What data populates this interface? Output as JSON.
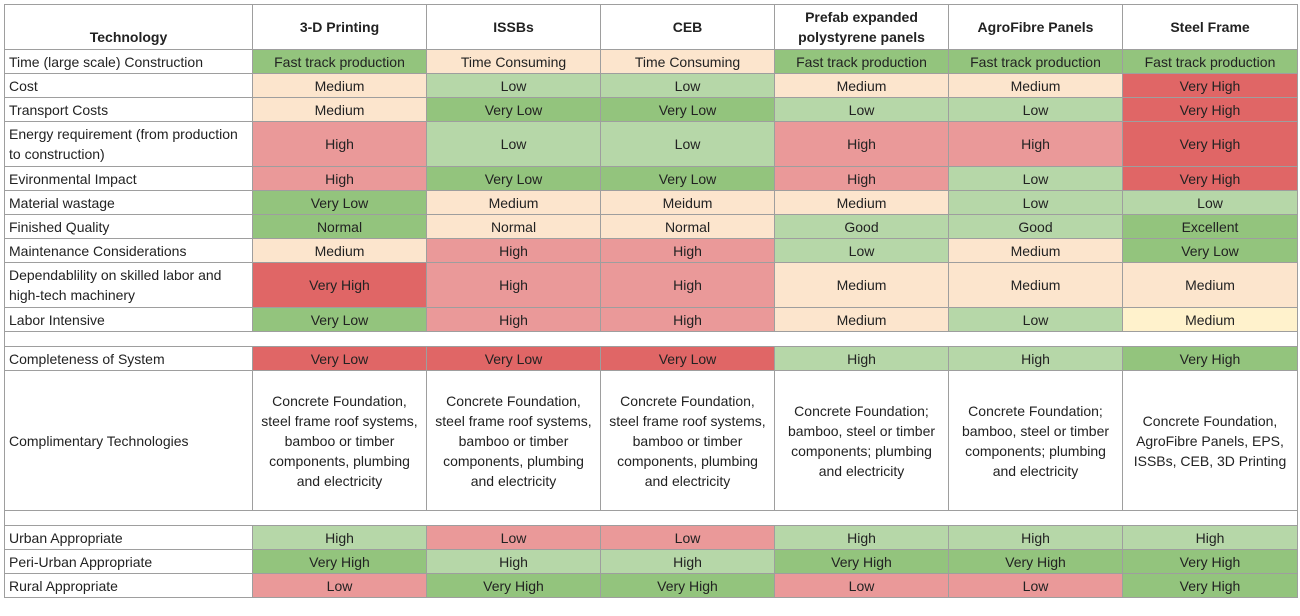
{
  "chart_data": {
    "type": "table",
    "row_header_label": "Technology",
    "columns": [
      "3-D Printing",
      "ISSBs",
      "CEB",
      "Prefab expanded polystyrene panels",
      "AgroFibre Panels",
      "Steel Frame"
    ],
    "rows": [
      {
        "label": "Time (large scale) Construction",
        "cells": [
          {
            "text": "Fast track production",
            "color": "#93c47d"
          },
          {
            "text": "Time Consuming",
            "color": "#fce5cd"
          },
          {
            "text": "Time Consuming",
            "color": "#fce5cd"
          },
          {
            "text": "Fast track production",
            "color": "#93c47d"
          },
          {
            "text": "Fast track production",
            "color": "#93c47d"
          },
          {
            "text": "Fast track production",
            "color": "#93c47d"
          }
        ]
      },
      {
        "label": "Cost",
        "cells": [
          {
            "text": "Medium",
            "color": "#fce5cd"
          },
          {
            "text": "Low",
            "color": "#b6d7a8"
          },
          {
            "text": "Low",
            "color": "#b6d7a8"
          },
          {
            "text": "Medium",
            "color": "#fce5cd"
          },
          {
            "text": "Medium",
            "color": "#fce5cd"
          },
          {
            "text": "Very High",
            "color": "#e06666"
          }
        ]
      },
      {
        "label": "Transport Costs",
        "cells": [
          {
            "text": "Medium",
            "color": "#fce5cd"
          },
          {
            "text": "Very Low",
            "color": "#93c47d"
          },
          {
            "text": "Very Low",
            "color": "#93c47d"
          },
          {
            "text": "Low",
            "color": "#b6d7a8"
          },
          {
            "text": "Low",
            "color": "#b6d7a8"
          },
          {
            "text": "Very High",
            "color": "#e06666"
          }
        ]
      },
      {
        "label": "Energy requirement (from production to construction)",
        "tall": true,
        "cells": [
          {
            "text": "High",
            "color": "#ea9999"
          },
          {
            "text": "Low",
            "color": "#b6d7a8"
          },
          {
            "text": "Low",
            "color": "#b6d7a8"
          },
          {
            "text": "High",
            "color": "#ea9999"
          },
          {
            "text": "High",
            "color": "#ea9999"
          },
          {
            "text": "Very High",
            "color": "#e06666"
          }
        ]
      },
      {
        "label": "Evironmental Impact",
        "cells": [
          {
            "text": "High",
            "color": "#ea9999"
          },
          {
            "text": "Very Low",
            "color": "#93c47d"
          },
          {
            "text": "Very Low",
            "color": "#93c47d"
          },
          {
            "text": "High",
            "color": "#ea9999"
          },
          {
            "text": "Low",
            "color": "#b6d7a8"
          },
          {
            "text": "Very High",
            "color": "#e06666"
          }
        ]
      },
      {
        "label": "Material wastage",
        "cells": [
          {
            "text": "Very Low",
            "color": "#93c47d"
          },
          {
            "text": "Medium",
            "color": "#fce5cd"
          },
          {
            "text": "Meidum",
            "color": "#fce5cd"
          },
          {
            "text": "Medium",
            "color": "#fce5cd"
          },
          {
            "text": "Low",
            "color": "#b6d7a8"
          },
          {
            "text": "Low",
            "color": "#b6d7a8"
          }
        ]
      },
      {
        "label": "Finished Quality",
        "cells": [
          {
            "text": "Normal",
            "color": "#93c47d"
          },
          {
            "text": "Normal",
            "color": "#fce5cd"
          },
          {
            "text": "Normal",
            "color": "#fce5cd"
          },
          {
            "text": "Good",
            "color": "#b6d7a8"
          },
          {
            "text": "Good",
            "color": "#b6d7a8"
          },
          {
            "text": "Excellent",
            "color": "#93c47d"
          }
        ]
      },
      {
        "label": "Maintenance Considerations",
        "cells": [
          {
            "text": "Medium",
            "color": "#fce5cd"
          },
          {
            "text": "High",
            "color": "#ea9999"
          },
          {
            "text": "High",
            "color": "#ea9999"
          },
          {
            "text": "Low",
            "color": "#b6d7a8"
          },
          {
            "text": "Medium",
            "color": "#fce5cd"
          },
          {
            "text": "Very Low",
            "color": "#93c47d"
          }
        ]
      },
      {
        "label": "Dependablility on skilled labor and high-tech machinery",
        "tall": true,
        "cells": [
          {
            "text": "Very High",
            "color": "#e06666"
          },
          {
            "text": "High",
            "color": "#ea9999"
          },
          {
            "text": "High",
            "color": "#ea9999"
          },
          {
            "text": "Medium",
            "color": "#fce5cd"
          },
          {
            "text": "Medium",
            "color": "#fce5cd"
          },
          {
            "text": "Medium",
            "color": "#fce5cd"
          }
        ]
      },
      {
        "label": "Labor Intensive",
        "cells": [
          {
            "text": "Very Low",
            "color": "#93c47d"
          },
          {
            "text": "High",
            "color": "#ea9999"
          },
          {
            "text": "High",
            "color": "#ea9999"
          },
          {
            "text": "Medium",
            "color": "#fce5cd"
          },
          {
            "text": "Low",
            "color": "#b6d7a8"
          },
          {
            "text": "Medium",
            "color": "#fff2cc"
          }
        ]
      },
      {
        "spacer": true
      },
      {
        "label": "Completeness of System",
        "cells": [
          {
            "text": "Very Low",
            "color": "#e06666"
          },
          {
            "text": "Very Low",
            "color": "#e06666"
          },
          {
            "text": "Very Low",
            "color": "#e06666"
          },
          {
            "text": "High",
            "color": "#b6d7a8"
          },
          {
            "text": "High",
            "color": "#b6d7a8"
          },
          {
            "text": "Very High",
            "color": "#93c47d"
          }
        ]
      },
      {
        "label": "Complimentary Technologies",
        "block": true,
        "cells": [
          {
            "text": "Concrete Foundation, steel frame roof systems, bamboo or timber components, plumbing and electricity",
            "color": "#ffffff"
          },
          {
            "text": "Concrete Foundation, steel frame roof systems, bamboo or timber components, plumbing and electricity",
            "color": "#ffffff"
          },
          {
            "text": "Concrete Foundation, steel frame roof systems, bamboo or timber components, plumbing and electricity",
            "color": "#ffffff"
          },
          {
            "text": "Concrete Foundation; bamboo, steel or timber components; plumbing and electricity",
            "color": "#ffffff"
          },
          {
            "text": "Concrete Foundation; bamboo, steel or timber components; plumbing and electricity",
            "color": "#ffffff"
          },
          {
            "text": "Concrete Foundation, AgroFibre Panels, EPS, ISSBs, CEB, 3D Printing",
            "color": "#ffffff"
          }
        ]
      },
      {
        "spacer": true
      },
      {
        "label": "Urban Appropriate",
        "cells": [
          {
            "text": "High",
            "color": "#b6d7a8"
          },
          {
            "text": "Low",
            "color": "#ea9999"
          },
          {
            "text": "Low",
            "color": "#ea9999"
          },
          {
            "text": "High",
            "color": "#b6d7a8"
          },
          {
            "text": "High",
            "color": "#b6d7a8"
          },
          {
            "text": "High",
            "color": "#b6d7a8"
          }
        ]
      },
      {
        "label": "Peri-Urban Appropriate",
        "cells": [
          {
            "text": "Very High",
            "color": "#93c47d"
          },
          {
            "text": "High",
            "color": "#b6d7a8"
          },
          {
            "text": "High",
            "color": "#b6d7a8"
          },
          {
            "text": "Very High",
            "color": "#93c47d"
          },
          {
            "text": "Very High",
            "color": "#93c47d"
          },
          {
            "text": "Very High",
            "color": "#93c47d"
          }
        ]
      },
      {
        "label": "Rural Appropriate",
        "cells": [
          {
            "text": "Low",
            "color": "#ea9999"
          },
          {
            "text": "Very High",
            "color": "#93c47d"
          },
          {
            "text": "Very High",
            "color": "#93c47d"
          },
          {
            "text": "Low",
            "color": "#ea9999"
          },
          {
            "text": "Low",
            "color": "#ea9999"
          },
          {
            "text": "Very High",
            "color": "#93c47d"
          }
        ]
      }
    ]
  }
}
